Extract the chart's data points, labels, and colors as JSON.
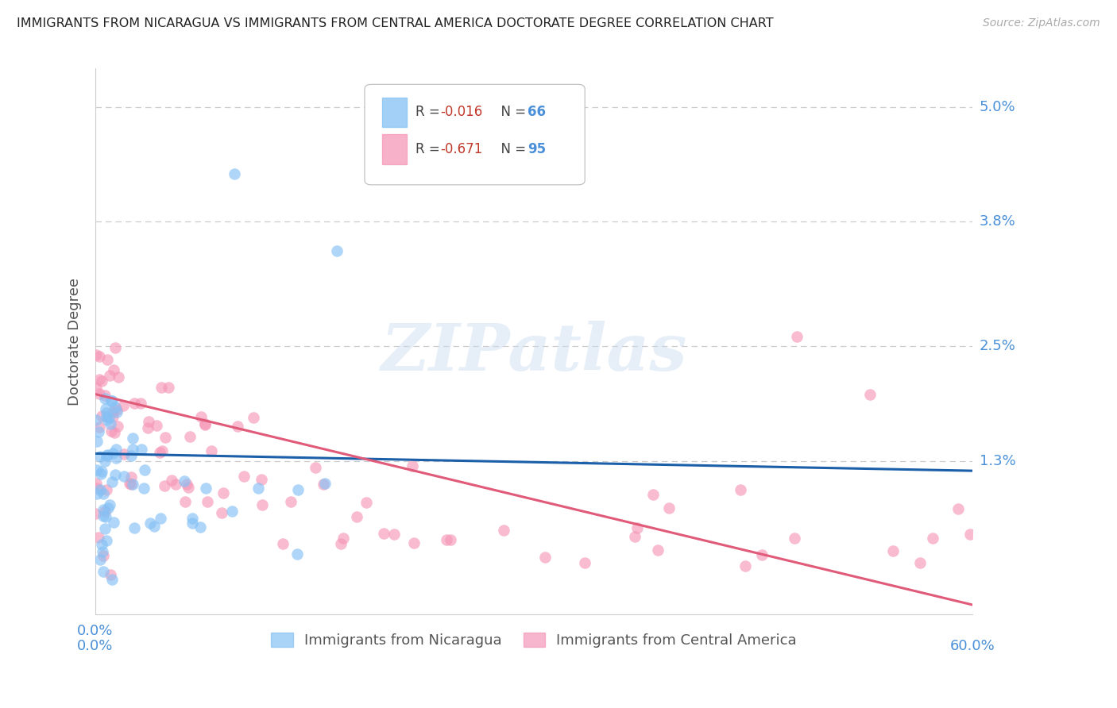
{
  "title": "IMMIGRANTS FROM NICARAGUA VS IMMIGRANTS FROM CENTRAL AMERICA DOCTORATE DEGREE CORRELATION CHART",
  "source": "Source: ZipAtlas.com",
  "ylabel": "Doctorate Degree",
  "right_yticks": [
    "5.0%",
    "3.8%",
    "2.5%",
    "1.3%"
  ],
  "right_ytick_vals": [
    0.05,
    0.038,
    0.025,
    0.013
  ],
  "xlim": [
    0.0,
    0.6
  ],
  "ylim": [
    -0.003,
    0.054
  ],
  "legend_r1": "-0.016",
  "legend_n1": "66",
  "legend_r2": "-0.671",
  "legend_n2": "95",
  "color_blue": "#85c1f5",
  "color_pink": "#f597b8",
  "color_blue_line": "#1a5fa8",
  "color_pink_line": "#e05a7a",
  "color_blue_text": "#4a90d9",
  "color_grid": "#cccccc",
  "watermark_text": "ZIPatlas",
  "blue_line_start_y": 0.0138,
  "blue_line_end_y": 0.012,
  "pink_line_start_y": 0.02,
  "pink_line_end_y": -0.002
}
